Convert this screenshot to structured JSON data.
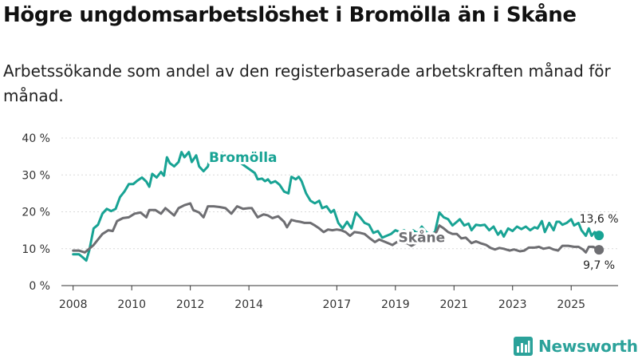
{
  "title": "Högre ungdomsarbetslöshet i Bromölla än i Skåne",
  "subtitle": "Arbetssökande som andel av den registerbaserade arbetskraften månad för månad.",
  "brand": {
    "name": "Newsworthy",
    "icon": "bar-chart-logo-icon"
  },
  "colors": {
    "bromolla": "#18a394",
    "skane": "#6e6e72",
    "axis": "#333333",
    "grid": "#d9d9d9"
  },
  "chart_data": {
    "type": "line",
    "title": "Högre ungdomsarbetslöshet i Bromölla än i Skåne",
    "xlabel": "",
    "ylabel": "",
    "ylim": [
      0,
      40
    ],
    "xlim": [
      2007.6,
      2026.6
    ],
    "y_ticks": [
      0,
      10,
      20,
      30,
      40
    ],
    "y_tick_labels": [
      "0 %",
      "10 %",
      "20 %",
      "30 %",
      "40 %"
    ],
    "x_ticks": [
      2008,
      2010,
      2012,
      2014,
      2017,
      2019,
      2021,
      2023,
      2025
    ],
    "x_tick_labels": [
      "2008",
      "2010",
      "2012",
      "2014",
      "2017",
      "2019",
      "2021",
      "2023",
      "2025"
    ],
    "series": [
      {
        "name": "Bromölla",
        "color": "#18a394",
        "end_label": "13,6 %",
        "points": [
          [
            2008.0,
            8.5
          ],
          [
            2008.2,
            8.5
          ],
          [
            2008.35,
            7.5
          ],
          [
            2008.45,
            6.8
          ],
          [
            2008.55,
            9.5
          ],
          [
            2008.7,
            15.5
          ],
          [
            2008.85,
            16.5
          ],
          [
            2009.0,
            19.5
          ],
          [
            2009.15,
            20.8
          ],
          [
            2009.3,
            20.2
          ],
          [
            2009.45,
            20.8
          ],
          [
            2009.6,
            24.0
          ],
          [
            2009.75,
            25.5
          ],
          [
            2009.9,
            27.5
          ],
          [
            2010.05,
            27.5
          ],
          [
            2010.2,
            28.5
          ],
          [
            2010.35,
            29.3
          ],
          [
            2010.5,
            28.2
          ],
          [
            2010.6,
            26.8
          ],
          [
            2010.7,
            30.3
          ],
          [
            2010.85,
            29.3
          ],
          [
            2011.0,
            30.8
          ],
          [
            2011.1,
            29.8
          ],
          [
            2011.2,
            34.8
          ],
          [
            2011.3,
            33.2
          ],
          [
            2011.45,
            32.3
          ],
          [
            2011.6,
            33.5
          ],
          [
            2011.7,
            36.2
          ],
          [
            2011.8,
            34.8
          ],
          [
            2011.95,
            36.2
          ],
          [
            2012.05,
            33.5
          ],
          [
            2012.2,
            35.3
          ],
          [
            2012.3,
            32.3
          ],
          [
            2012.45,
            31.0
          ],
          [
            2012.6,
            32.3
          ],
          [
            2012.7,
            35.8
          ],
          [
            2012.8,
            34.8
          ],
          [
            2012.9,
            36.0
          ],
          [
            2013.0,
            35.3
          ],
          [
            2013.1,
            36.0
          ],
          [
            2013.2,
            35.0
          ],
          [
            2013.35,
            35.3
          ],
          [
            2014.2,
            30.5
          ],
          [
            2014.3,
            28.8
          ],
          [
            2014.45,
            29.0
          ],
          [
            2014.55,
            28.3
          ],
          [
            2014.65,
            28.8
          ],
          [
            2014.75,
            27.8
          ],
          [
            2014.9,
            28.3
          ],
          [
            2015.05,
            27.3
          ],
          [
            2015.2,
            25.5
          ],
          [
            2015.35,
            25.0
          ],
          [
            2015.45,
            29.5
          ],
          [
            2015.6,
            28.8
          ],
          [
            2015.7,
            29.5
          ],
          [
            2015.8,
            28.3
          ],
          [
            2015.95,
            25.0
          ],
          [
            2016.1,
            23.0
          ],
          [
            2016.25,
            22.3
          ],
          [
            2016.4,
            23.0
          ],
          [
            2016.5,
            21.0
          ],
          [
            2016.65,
            21.5
          ],
          [
            2016.8,
            19.8
          ],
          [
            2016.9,
            20.5
          ],
          [
            2017.05,
            17.0
          ],
          [
            2017.2,
            15.5
          ],
          [
            2017.35,
            17.3
          ],
          [
            2017.5,
            15.5
          ],
          [
            2017.65,
            19.8
          ],
          [
            2017.8,
            18.5
          ],
          [
            2017.95,
            17.0
          ],
          [
            2018.1,
            16.5
          ],
          [
            2018.25,
            14.3
          ],
          [
            2018.4,
            14.8
          ],
          [
            2018.55,
            13.0
          ],
          [
            2018.85,
            14.0
          ],
          [
            2019.0,
            15.0
          ],
          [
            2019.15,
            14.5
          ],
          [
            2019.3,
            15.0
          ],
          [
            2019.45,
            14.0
          ],
          [
            2019.6,
            15.0
          ],
          [
            2019.75,
            14.2
          ],
          [
            2019.9,
            16.0
          ],
          [
            2020.05,
            14.5
          ],
          [
            2020.2,
            13.8
          ],
          [
            2020.35,
            14.5
          ],
          [
            2020.5,
            19.8
          ],
          [
            2020.65,
            18.5
          ],
          [
            2020.8,
            18.0
          ],
          [
            2020.95,
            16.3
          ],
          [
            2021.1,
            17.3
          ],
          [
            2021.2,
            18.0
          ],
          [
            2021.35,
            16.3
          ],
          [
            2021.5,
            16.8
          ],
          [
            2021.6,
            15.0
          ],
          [
            2021.75,
            16.5
          ],
          [
            2021.9,
            16.3
          ],
          [
            2022.05,
            16.5
          ],
          [
            2022.2,
            15.0
          ],
          [
            2022.35,
            16.0
          ],
          [
            2022.5,
            13.8
          ],
          [
            2022.6,
            14.8
          ],
          [
            2022.7,
            13.3
          ],
          [
            2022.85,
            15.5
          ],
          [
            2023.0,
            14.8
          ],
          [
            2023.15,
            16.0
          ],
          [
            2023.3,
            15.3
          ],
          [
            2023.45,
            16.0
          ],
          [
            2023.6,
            15.0
          ],
          [
            2023.75,
            15.8
          ],
          [
            2023.85,
            15.5
          ],
          [
            2024.0,
            17.5
          ],
          [
            2024.1,
            14.5
          ],
          [
            2024.25,
            17.0
          ],
          [
            2024.4,
            15.0
          ],
          [
            2024.5,
            17.3
          ],
          [
            2024.6,
            17.3
          ],
          [
            2024.7,
            16.5
          ],
          [
            2024.85,
            17.0
          ],
          [
            2025.0,
            18.0
          ],
          [
            2025.1,
            16.3
          ],
          [
            2025.25,
            17.0
          ],
          [
            2025.35,
            15.0
          ],
          [
            2025.5,
            13.5
          ],
          [
            2025.6,
            15.5
          ],
          [
            2025.7,
            13.5
          ],
          [
            2025.8,
            14.5
          ],
          [
            2025.95,
            13.6
          ]
        ]
      },
      {
        "name": "Skåne",
        "color": "#6e6e72",
        "end_label": "9,7 %",
        "points": [
          [
            2008.0,
            9.5
          ],
          [
            2008.2,
            9.5
          ],
          [
            2008.4,
            9.0
          ],
          [
            2008.55,
            10.0
          ],
          [
            2008.7,
            11.0
          ],
          [
            2008.85,
            12.5
          ],
          [
            2009.0,
            14.0
          ],
          [
            2009.2,
            15.0
          ],
          [
            2009.35,
            14.8
          ],
          [
            2009.5,
            17.5
          ],
          [
            2009.7,
            18.3
          ],
          [
            2009.9,
            18.5
          ],
          [
            2010.1,
            19.5
          ],
          [
            2010.3,
            19.8
          ],
          [
            2010.5,
            18.5
          ],
          [
            2010.6,
            20.5
          ],
          [
            2010.8,
            20.5
          ],
          [
            2011.0,
            19.5
          ],
          [
            2011.15,
            21.0
          ],
          [
            2011.3,
            20.0
          ],
          [
            2011.45,
            19.0
          ],
          [
            2011.6,
            21.0
          ],
          [
            2011.8,
            21.8
          ],
          [
            2012.0,
            22.3
          ],
          [
            2012.1,
            20.5
          ],
          [
            2012.3,
            19.8
          ],
          [
            2012.45,
            18.5
          ],
          [
            2012.6,
            21.5
          ],
          [
            2012.8,
            21.5
          ],
          [
            2013.0,
            21.3
          ],
          [
            2013.2,
            21.0
          ],
          [
            2013.4,
            19.5
          ],
          [
            2013.6,
            21.5
          ],
          [
            2013.8,
            20.8
          ],
          [
            2014.0,
            21.0
          ],
          [
            2014.1,
            21.0
          ],
          [
            2014.3,
            18.5
          ],
          [
            2014.5,
            19.3
          ],
          [
            2014.65,
            19.0
          ],
          [
            2014.8,
            18.3
          ],
          [
            2015.0,
            18.8
          ],
          [
            2015.2,
            17.3
          ],
          [
            2015.3,
            15.8
          ],
          [
            2015.45,
            17.8
          ],
          [
            2015.6,
            17.5
          ],
          [
            2015.75,
            17.3
          ],
          [
            2015.9,
            17.0
          ],
          [
            2016.1,
            17.0
          ],
          [
            2016.25,
            16.3
          ],
          [
            2016.4,
            15.5
          ],
          [
            2016.55,
            14.5
          ],
          [
            2016.7,
            15.2
          ],
          [
            2016.85,
            15.0
          ],
          [
            2017.0,
            15.2
          ],
          [
            2017.15,
            15.0
          ],
          [
            2017.3,
            14.5
          ],
          [
            2017.45,
            13.5
          ],
          [
            2017.6,
            14.5
          ],
          [
            2017.8,
            14.3
          ],
          [
            2017.95,
            14.0
          ],
          [
            2018.1,
            13.0
          ],
          [
            2018.3,
            11.8
          ],
          [
            2018.45,
            12.5
          ],
          [
            2018.6,
            12.0
          ],
          [
            2018.75,
            11.5
          ],
          [
            2018.9,
            11.0
          ],
          [
            2019.05,
            11.8
          ],
          [
            2019.25,
            11.5
          ],
          [
            2019.4,
            11.5
          ],
          [
            2019.55,
            10.8
          ],
          [
            2020.4,
            14.5
          ],
          [
            2020.5,
            16.3
          ],
          [
            2020.65,
            15.5
          ],
          [
            2020.8,
            14.5
          ],
          [
            2020.95,
            14.0
          ],
          [
            2021.1,
            14.0
          ],
          [
            2021.25,
            12.8
          ],
          [
            2021.4,
            13.0
          ],
          [
            2021.6,
            11.5
          ],
          [
            2021.75,
            12.0
          ],
          [
            2021.9,
            11.5
          ],
          [
            2022.1,
            11.0
          ],
          [
            2022.25,
            10.2
          ],
          [
            2022.4,
            9.8
          ],
          [
            2022.55,
            10.2
          ],
          [
            2022.7,
            10.0
          ],
          [
            2022.9,
            9.5
          ],
          [
            2023.05,
            9.8
          ],
          [
            2023.25,
            9.3
          ],
          [
            2023.4,
            9.5
          ],
          [
            2023.55,
            10.3
          ],
          [
            2023.75,
            10.3
          ],
          [
            2023.9,
            10.5
          ],
          [
            2024.05,
            10.0
          ],
          [
            2024.25,
            10.3
          ],
          [
            2024.4,
            9.8
          ],
          [
            2024.55,
            9.5
          ],
          [
            2024.7,
            10.8
          ],
          [
            2024.9,
            10.8
          ],
          [
            2025.1,
            10.5
          ],
          [
            2025.25,
            10.5
          ],
          [
            2025.4,
            9.8
          ],
          [
            2025.5,
            9.0
          ],
          [
            2025.6,
            10.5
          ],
          [
            2025.75,
            10.5
          ],
          [
            2025.95,
            9.7
          ]
        ]
      }
    ]
  }
}
